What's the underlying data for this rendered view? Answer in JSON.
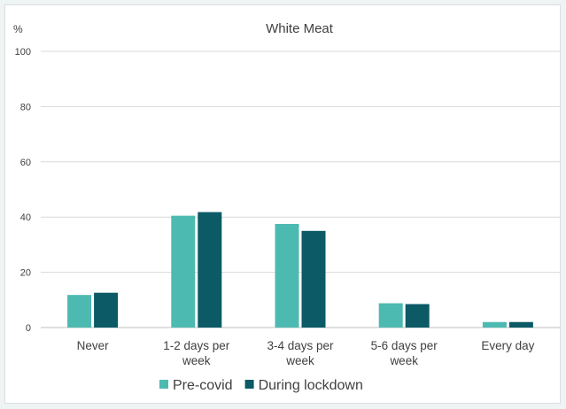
{
  "chart_data": {
    "type": "bar",
    "title": "White Meat",
    "unit_label": "%",
    "xlabel": "",
    "ylabel": "",
    "categories": [
      [
        "Never"
      ],
      [
        "1-2 days per",
        "week"
      ],
      [
        "3-4 days per",
        "week"
      ],
      [
        "5-6 days per",
        "week"
      ],
      [
        "Every day"
      ]
    ],
    "series": [
      {
        "name": "Pre-covid",
        "color": "#4dbab1",
        "values": [
          11.8,
          40.5,
          37.5,
          8.8,
          2.0
        ]
      },
      {
        "name": "During lockdown",
        "color": "#0b5a66",
        "values": [
          12.6,
          41.8,
          35.0,
          8.5,
          2.0
        ]
      }
    ],
    "ylim": [
      0,
      100
    ],
    "yticks": [
      0,
      20,
      40,
      60,
      80,
      100
    ],
    "grid": true,
    "legend_position": "bottom"
  }
}
